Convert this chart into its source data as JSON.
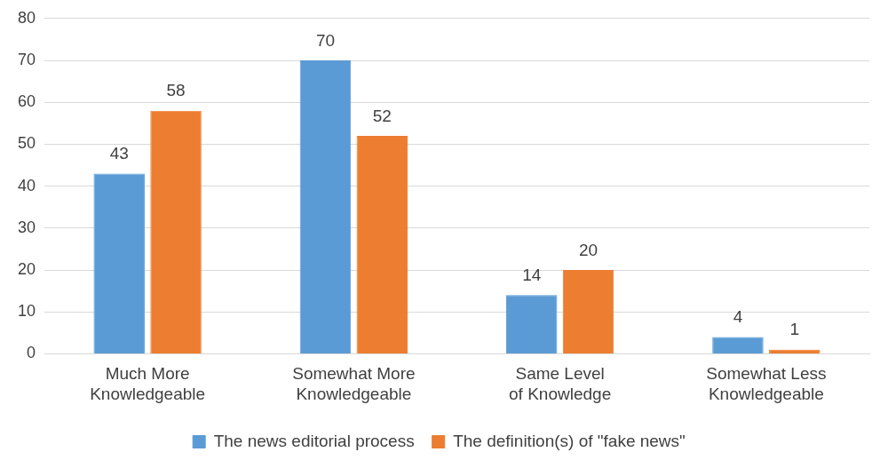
{
  "chart_data": {
    "type": "bar",
    "categories": [
      "Much More Knowledgeable",
      "Somewhat More Knowledgeable",
      "Same Level of Knowledge",
      "Somewhat Less Knowledgeable"
    ],
    "series": [
      {
        "name": "The news editorial process",
        "color": "#5b9bd5",
        "values": [
          43,
          70,
          14,
          4
        ]
      },
      {
        "name": "The definition(s) of \"fake news\"",
        "color": "#ed7d31",
        "values": [
          58,
          52,
          20,
          1
        ]
      }
    ],
    "ylim": [
      0,
      80
    ],
    "yticks": [
      0,
      10,
      20,
      30,
      40,
      50,
      60,
      70,
      80
    ],
    "grid": "y",
    "legend": "bottom",
    "data_labels": true
  }
}
